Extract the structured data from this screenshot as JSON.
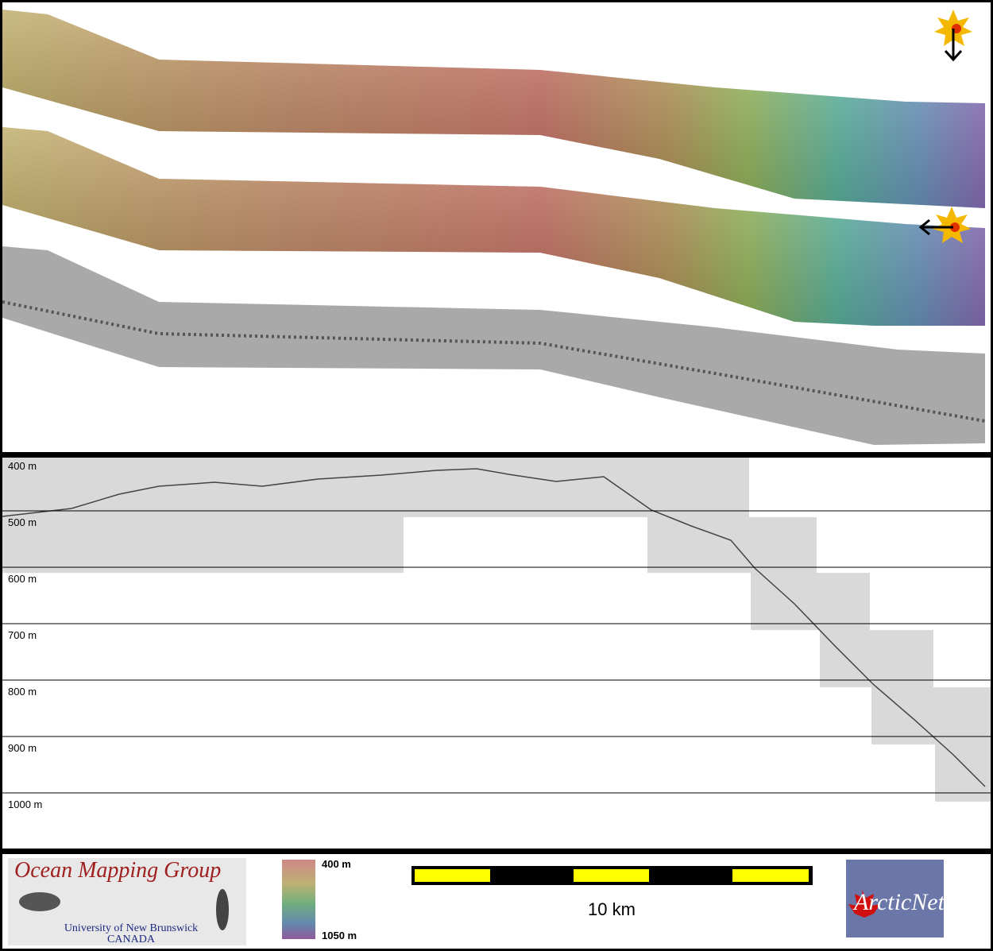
{
  "profile": {
    "depth_labels": [
      "400 m",
      "500 m",
      "600 m",
      "700 m",
      "800 m",
      "900 m",
      "1000 m"
    ]
  },
  "legend": {
    "top_label": "400 m",
    "bottom_label": "1050 m"
  },
  "scale_bar": {
    "label": "10 km"
  },
  "logos": {
    "omg": {
      "title": "Ocean Mapping Group",
      "line1": "University of New Brunswick",
      "line2": "CANADA"
    },
    "arcticnet": {
      "name": "ArcticNet"
    }
  }
}
